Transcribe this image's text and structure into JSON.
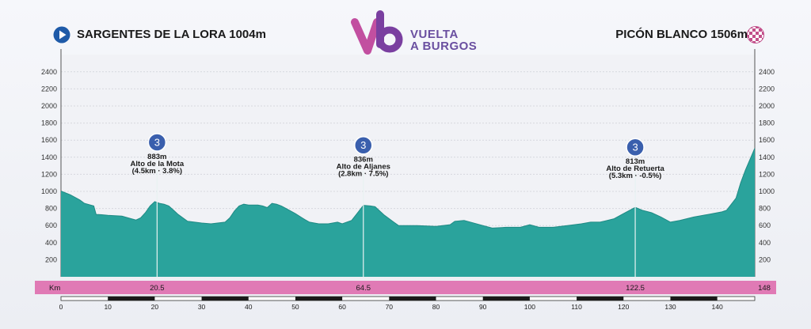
{
  "header": {
    "start_label": "SARGENTES DE LA LORA 1004m",
    "finish_label": "PICÓN BLANCO 1506m",
    "logo_line1": "VUELTA",
    "logo_line2": "A BURGOS"
  },
  "colors": {
    "profile_fill": "#2aa39c",
    "profile_fill_dark": "#1f8a84",
    "km_band": "#e07ab5",
    "logo_purple": "#6a4fa0",
    "climb_badge": "#3a5fad",
    "start_icon": "#1e5aa8"
  },
  "chart_data": {
    "type": "area",
    "xlabel": "Km",
    "xlim": [
      0,
      148
    ],
    "ylim": [
      0,
      2600
    ],
    "y_ticks": [
      200,
      400,
      600,
      800,
      1000,
      1200,
      1400,
      1600,
      1800,
      2000,
      2200,
      2400
    ],
    "x_ticks": [
      0,
      10,
      20,
      30,
      40,
      50,
      60,
      70,
      80,
      90,
      100,
      110,
      120,
      130,
      140
    ],
    "grid": true,
    "series": [
      {
        "x": [
          0,
          2,
          4,
          5,
          7,
          7.5,
          8,
          10,
          13,
          15,
          16,
          17,
          18,
          19,
          20,
          21,
          22,
          23,
          24,
          25,
          27,
          30,
          32,
          35,
          36,
          37,
          38,
          39,
          40,
          42,
          43,
          44,
          45,
          46,
          47,
          48,
          50,
          52,
          53,
          55,
          57,
          59,
          60,
          62,
          63,
          64,
          64.5,
          66,
          67,
          69,
          71,
          72,
          76,
          80,
          83,
          84,
          86,
          90,
          92,
          95,
          98,
          100,
          102,
          105,
          108,
          111,
          113,
          115,
          118,
          120,
          122.5,
          124,
          126,
          128,
          130,
          132,
          135,
          138,
          141,
          142,
          144,
          145,
          146,
          148
        ],
        "y": [
          1004,
          960,
          900,
          860,
          830,
          730,
          730,
          720,
          710,
          680,
          665,
          690,
          750,
          830,
          880,
          860,
          850,
          830,
          780,
          730,
          650,
          630,
          620,
          640,
          690,
          770,
          830,
          850,
          840,
          840,
          830,
          810,
          860,
          850,
          830,
          800,
          740,
          670,
          640,
          620,
          620,
          640,
          620,
          660,
          730,
          800,
          836,
          830,
          820,
          720,
          640,
          600,
          600,
          590,
          610,
          650,
          660,
          600,
          570,
          580,
          580,
          610,
          580,
          580,
          600,
          620,
          640,
          640,
          680,
          740,
          813,
          780,
          750,
          700,
          640,
          660,
          700,
          730,
          760,
          780,
          920,
          1100,
          1250,
          1506
        ]
      }
    ],
    "climbs": [
      {
        "km": 20.5,
        "elevation_label": "883m",
        "name": "Alto de la Mota",
        "details": "(4.5km · 3.8%)",
        "category": "3"
      },
      {
        "km": 64.5,
        "elevation_label": "836m",
        "name": "Alto de Aljanes",
        "details": "(2.8km · 7.5%)",
        "category": "3"
      },
      {
        "km": 122.5,
        "elevation_label": "813m",
        "name": "Alto de Retuerta",
        "details": "(5.3km · -0.5%)",
        "category": "3"
      }
    ],
    "km_band": {
      "label": "Km",
      "points": [
        "20.5",
        "64.5",
        "122.5",
        "148"
      ]
    }
  }
}
